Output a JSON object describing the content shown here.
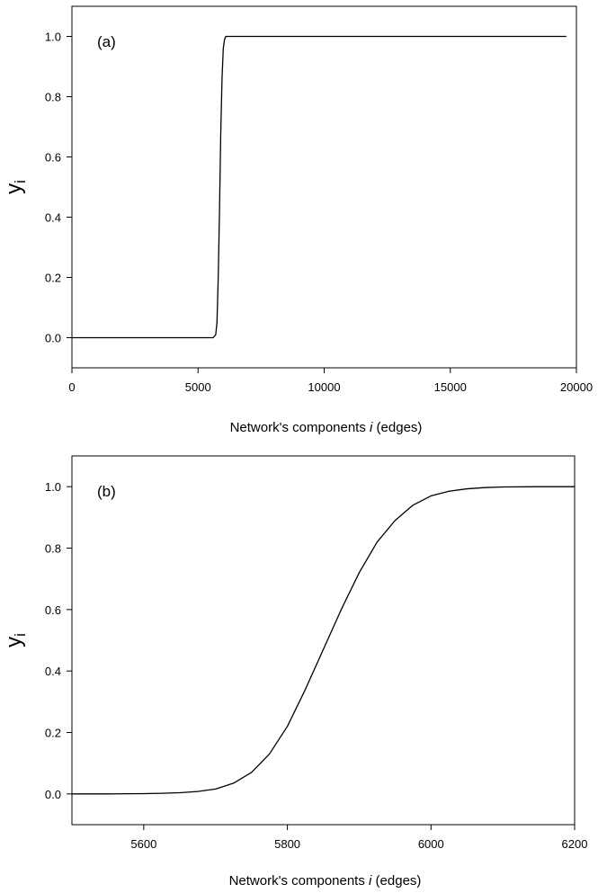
{
  "chart_data": [
    {
      "type": "line",
      "panel_label": "(a)",
      "xlabel_prefix": "Network's components ",
      "xlabel_var": "i",
      "xlabel_suffix": " (edges)",
      "ylabel_main": "y",
      "ylabel_sub": "i",
      "xlim": [
        0,
        20000
      ],
      "ylim": [
        -0.1,
        1.1
      ],
      "xticks": [
        0,
        5000,
        10000,
        15000,
        20000
      ],
      "xtick_labels": [
        "0",
        "5000",
        "10000",
        "15000",
        "20000"
      ],
      "yticks": [
        0.0,
        0.2,
        0.4,
        0.6,
        0.8,
        1.0
      ],
      "ytick_labels": [
        "0.0",
        "0.2",
        "0.4",
        "0.6",
        "0.8",
        "1.0"
      ],
      "grid": false,
      "line_color": "#000000",
      "series": [
        {
          "x": [
            0,
            5000,
            5600,
            5700,
            5750,
            5800,
            5850,
            5875,
            5900,
            5950,
            6000,
            6050,
            6100,
            6200,
            10000,
            15000,
            19600
          ],
          "y": [
            0.0,
            0.0,
            0.0,
            0.01,
            0.05,
            0.2,
            0.42,
            0.55,
            0.68,
            0.86,
            0.96,
            0.99,
            1.0,
            1.0,
            1.0,
            1.0,
            1.0
          ]
        }
      ]
    },
    {
      "type": "line",
      "panel_label": "(b)",
      "xlabel_prefix": "Network's components ",
      "xlabel_var": "i",
      "xlabel_suffix": " (edges)",
      "ylabel_main": "y",
      "ylabel_sub": "i",
      "xlim": [
        5500,
        6200
      ],
      "ylim": [
        -0.1,
        1.1
      ],
      "xticks": [
        5600,
        5800,
        6000,
        6200
      ],
      "xtick_labels": [
        "5600",
        "5800",
        "6000",
        "6200"
      ],
      "yticks": [
        0.0,
        0.2,
        0.4,
        0.6,
        0.8,
        1.0
      ],
      "ytick_labels": [
        "0.0",
        "0.2",
        "0.4",
        "0.6",
        "0.8",
        "1.0"
      ],
      "grid": false,
      "line_color": "#000000",
      "series": [
        {
          "x": [
            5500,
            5550,
            5600,
            5625,
            5650,
            5675,
            5700,
            5725,
            5750,
            5775,
            5800,
            5825,
            5850,
            5875,
            5900,
            5925,
            5950,
            5975,
            6000,
            6025,
            6050,
            6075,
            6100,
            6150,
            6200
          ],
          "y": [
            0.0,
            0.0,
            0.001,
            0.002,
            0.004,
            0.008,
            0.016,
            0.035,
            0.07,
            0.13,
            0.22,
            0.34,
            0.47,
            0.6,
            0.72,
            0.82,
            0.89,
            0.94,
            0.97,
            0.985,
            0.993,
            0.997,
            0.999,
            1.0,
            1.0
          ]
        }
      ]
    }
  ]
}
